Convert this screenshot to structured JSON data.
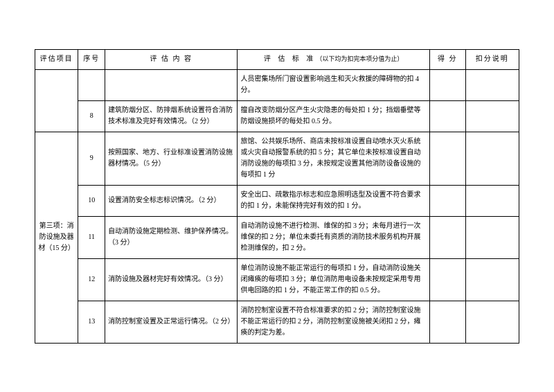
{
  "headers": {
    "project": "评估项目",
    "num": "序号",
    "content": "评 估 内 容",
    "standard": "评 估 标 准",
    "standard_sub": "（以下均为扣完本项分值为止）",
    "score": "得 分",
    "deduct": "扣分说明"
  },
  "section_prev_tail": {
    "r1_std": "人员密集场所门窗设置影响逃生和灭火救援的障碍物的扣 4 分。",
    "r2_num": "8",
    "r2_cont": "建筑防烟分区、防排烟系统设置符合消防技术标准及完好有效情况。（2 分）",
    "r2_std": "擅自改变防烟分区产生火灾隐患的每处扣 1 分；挡烟垂壁等防烟设施损坏的每处扣 0.5 分。"
  },
  "section3": {
    "label": "第三项：消防设施及器材（15 分）",
    "rows": [
      {
        "num": "9",
        "cont": "按照国家、地方、行业标准设置消防设施器材情况。（5 分）",
        "std": "旅馆、公共娱乐场所、商店未按标准设置自动喷水灭火系统或火灾自动报警系统的扣 5 分；其它单位未按标准设置自动消防设施的每项扣 3 分，未按规定设置其他消防设备设施的每项扣 1 分"
      },
      {
        "num": "10",
        "cont": "设置消防安全标志标识情况。（2 分）",
        "std": "安全出口、疏散指示标志和应急照明选型及设置不符合要求的扣 1 分，未能保持完好有效的扣 1 分。"
      },
      {
        "num": "11",
        "cont": "自动消防设施定期检测、维护保养情况。（3 分）",
        "std": "自动消防设施不进行检测、维保的扣 3 分；未每月进行一次维保的扣 2 分；单位未委托有资质的消防技术服务机构开展检测维保的，扣 2 分。"
      },
      {
        "num": "12",
        "cont": "消防设施及器材完好有效情况。（3 分）",
        "std": "单位消防设施不能正常运行的每项扣 1 分，自动消防设施关闭瘫痪的每项扣 3 分；单位消防用电设备未按规定采用专用供电回路的扣 1 分，不能正常工作的扣 0.5 分。"
      },
      {
        "num": "13",
        "cont": "消防控制室设置及正常运行情况。（2 分）",
        "std": "消防控制室设置不符合标准要求的扣 2 分；消防控制室设施不能正常运行的扣 2 分，消防控制室设施被关闭扣 2 分，瘫痪的判定为差。"
      }
    ]
  }
}
